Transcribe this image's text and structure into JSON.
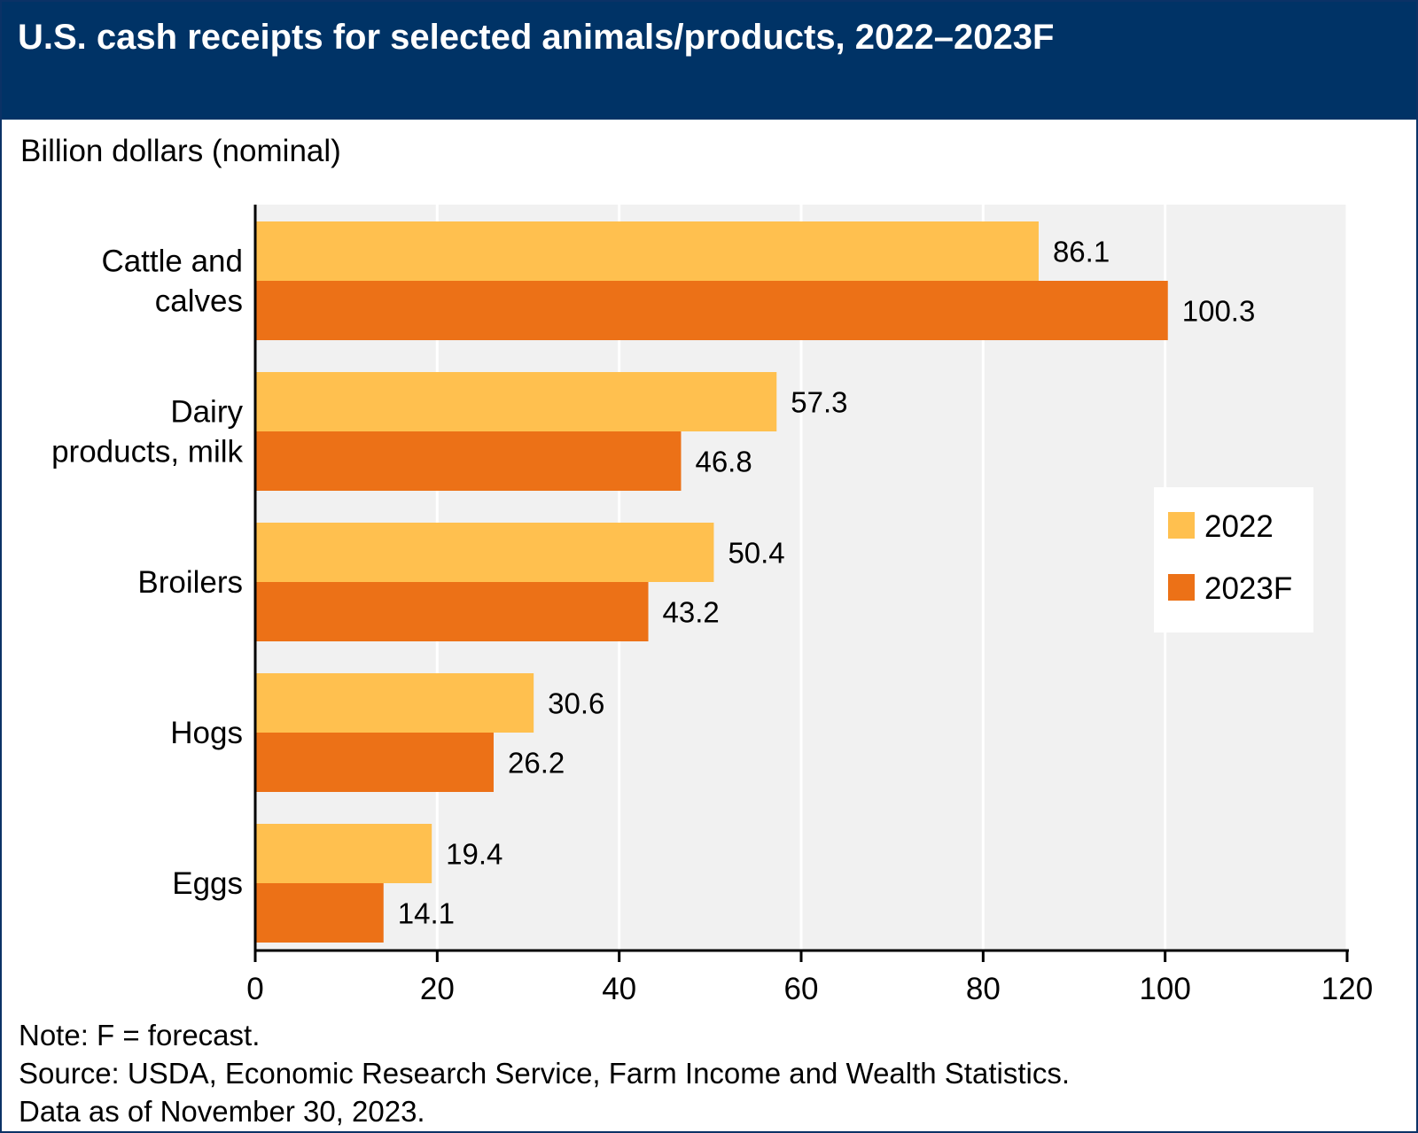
{
  "title": "U.S. cash receipts for selected animals/products, 2022–2023F",
  "unit_label": "Billion dollars (nominal)",
  "notes": {
    "note": "Note: F = forecast.",
    "source": "Source: USDA, Economic Research Service, Farm Income and Wealth Statistics.",
    "date": "Data as of November 30, 2023."
  },
  "colors": {
    "header_bg": "#003366",
    "plot_bg": "#f1f1f1",
    "series_2022": "#ffc04f",
    "series_2023F": "#ec7117"
  },
  "chart_data": {
    "type": "bar",
    "orientation": "horizontal",
    "title": "U.S. cash receipts for selected animals/products, 2022–2023F",
    "xlabel": "",
    "ylabel": "Billion dollars (nominal)",
    "categories": [
      [
        "Cattle and",
        "calves"
      ],
      [
        "Dairy",
        "products, milk"
      ],
      [
        "Broilers"
      ],
      [
        "Hogs"
      ],
      [
        "Eggs"
      ]
    ],
    "series": [
      {
        "name": "2022",
        "color": "#ffc04f",
        "values": [
          86.1,
          57.3,
          50.4,
          30.6,
          19.4
        ],
        "labels": [
          "86.1",
          "57.3",
          "50.4",
          "30.6",
          "19.4"
        ]
      },
      {
        "name": "2023F",
        "color": "#ec7117",
        "values": [
          100.3,
          46.8,
          43.2,
          26.2,
          14.1
        ],
        "labels": [
          "100.3",
          "46.8",
          "43.2",
          "26.2",
          "14.1"
        ]
      }
    ],
    "xlim": [
      0,
      120
    ],
    "ticks": [
      0,
      20,
      40,
      60,
      80,
      100,
      120
    ],
    "tick_labels": [
      "0",
      "20",
      "40",
      "60",
      "80",
      "100",
      "120"
    ],
    "grid": true,
    "legend_position": "right"
  }
}
